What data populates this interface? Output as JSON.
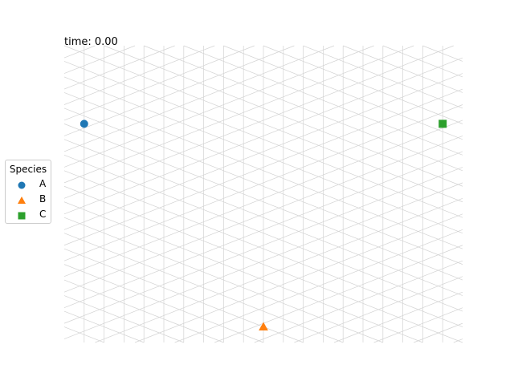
{
  "time_label": "time: 0.00",
  "chart_data": {
    "type": "scatter",
    "title": "",
    "xlabel": "",
    "ylabel": "",
    "grid": "triangular lattice, 20 columns x 20 rows",
    "xlim": [
      0,
      20
    ],
    "ylim": [
      0,
      19
    ],
    "legend": {
      "title": "Species",
      "placement": "center-left, outside plot"
    },
    "series": [
      {
        "name": "A",
        "marker": "circle",
        "color": "#1f77b4",
        "points": [
          {
            "x": 1,
            "y": 14
          }
        ]
      },
      {
        "name": "B",
        "marker": "triangle",
        "color": "#ff7f0e",
        "points": [
          {
            "x": 10,
            "y": 1
          }
        ]
      },
      {
        "name": "C",
        "marker": "square",
        "color": "#2ca02c",
        "points": [
          {
            "x": 19,
            "y": 14
          }
        ]
      }
    ]
  },
  "colors": {
    "grid": "#d3d3d3",
    "legend_border": "#cccccc"
  }
}
